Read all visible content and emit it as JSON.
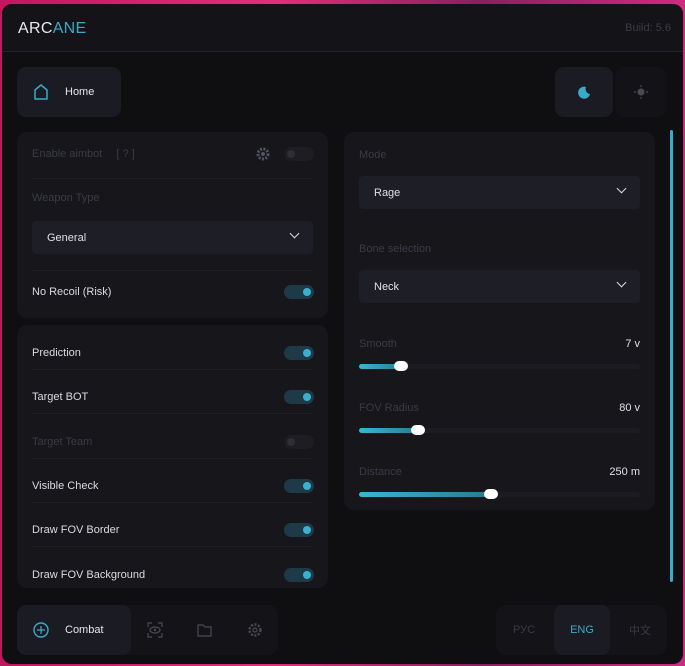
{
  "header": {
    "logo_a": "ARC",
    "logo_b": "ANE",
    "build": "Build: 5.6"
  },
  "top": {
    "home": "Home",
    "theme_dark": "moon-icon",
    "theme_light": "sun-icon"
  },
  "panel1": {
    "enable_aimbot": "Enable aimbot",
    "help": "[ ? ]",
    "weapon_type_label": "Weapon Type",
    "weapon_type": "General",
    "no_recoil": "No Recoil (Risk)"
  },
  "panel2": {
    "items": [
      {
        "label": "Prediction",
        "on": true
      },
      {
        "label": "Target BOT",
        "on": true
      },
      {
        "label": "Target Team",
        "on": false
      },
      {
        "label": "Visible Check",
        "on": true
      },
      {
        "label": "Draw FOV Border",
        "on": true
      },
      {
        "label": "Draw FOV Background",
        "on": true
      }
    ]
  },
  "right": {
    "mode_label": "Mode",
    "mode": "Rage",
    "bone_label": "Bone selection",
    "bone": "Neck",
    "sliders": [
      {
        "label": "Smooth",
        "value": "7 v",
        "percent": 16
      },
      {
        "label": "FOV Radius",
        "value": "80 v",
        "percent": 22
      },
      {
        "label": "Distance",
        "value": "250 m",
        "percent": 48
      }
    ]
  },
  "bottom": {
    "combat": "Combat",
    "lang": [
      "РУС",
      "ENG",
      "中文"
    ],
    "active_lang": "ENG"
  },
  "colors": {
    "accent": "#3aaac8"
  }
}
